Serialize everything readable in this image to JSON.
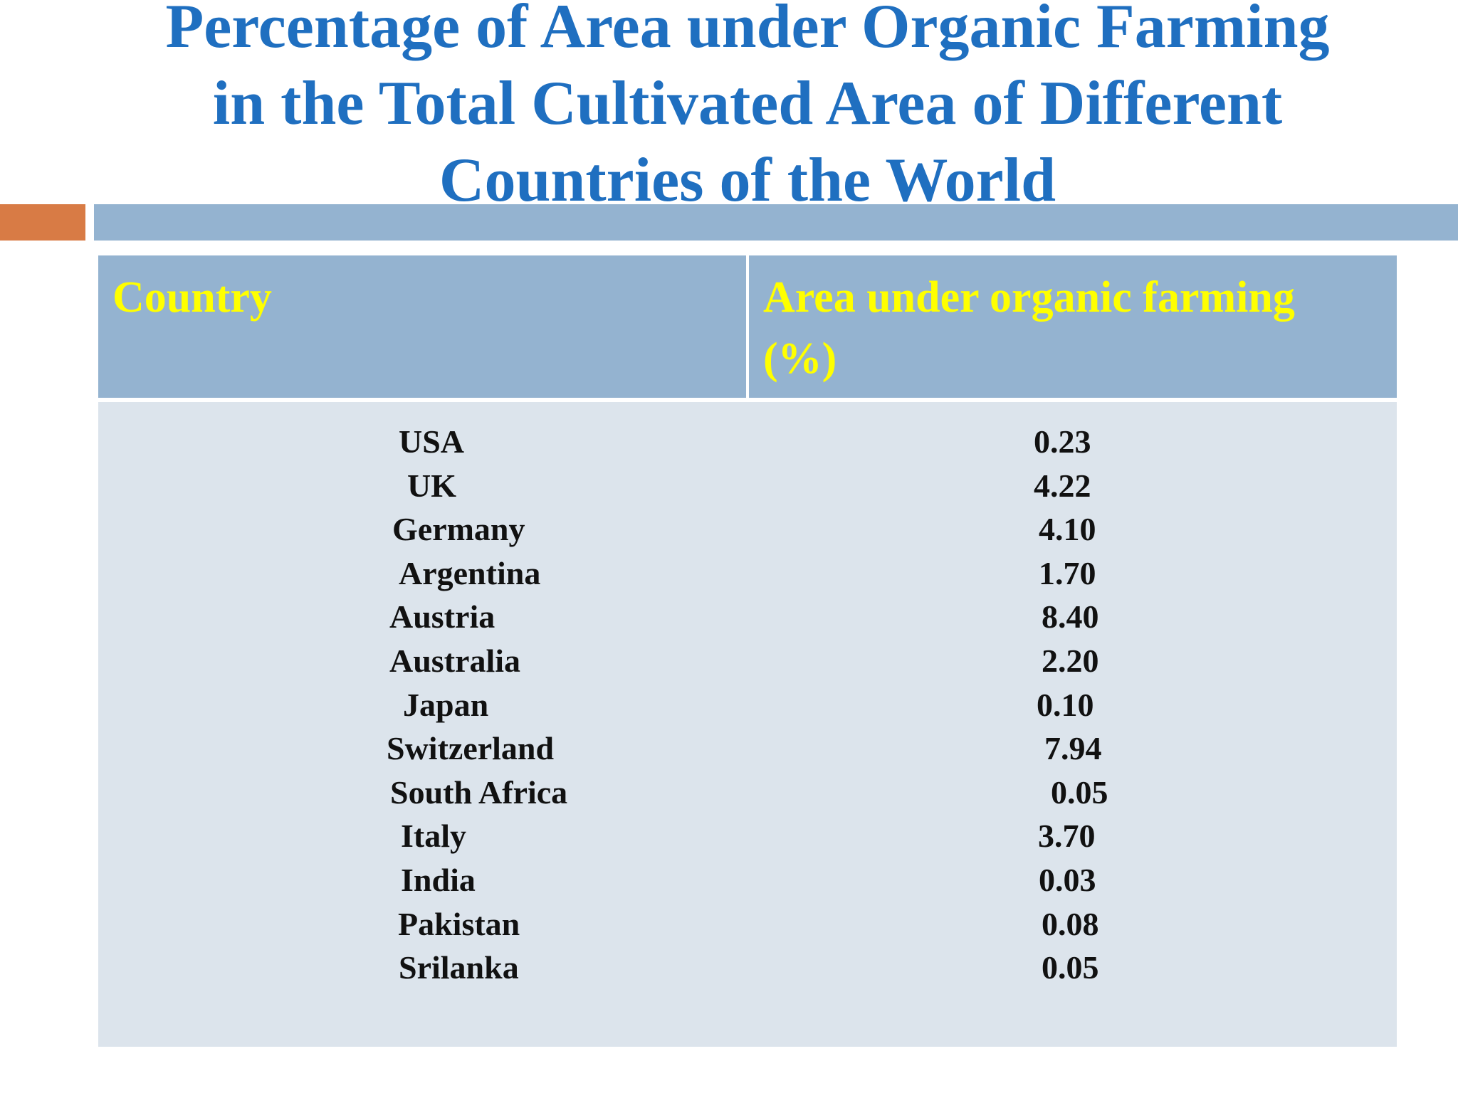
{
  "slide": {
    "title_lines": [
      "Percentage of Area under Organic Farming",
      "in the Total Cultivated Area of Different",
      "Countries of the World"
    ],
    "colors": {
      "title": "#1f6fc0",
      "accent_orange": "#d87b45",
      "accent_blue": "#94b3d0",
      "header_bg": "#94b3d0",
      "header_text": "#ffff00",
      "body_bg": "#dce4ec"
    }
  },
  "table": {
    "headers": {
      "country": "Country",
      "area_line1": "Area under organic farming",
      "area_line2": "(%)"
    },
    "rows": [
      {
        "country": "USA",
        "value": "0.23"
      },
      {
        "country": "UK",
        "value": "4.22"
      },
      {
        "country": "Germany",
        "value": "4.10"
      },
      {
        "country": "Argentina",
        "value": "1.70"
      },
      {
        "country": "Austria",
        "value": "8.40"
      },
      {
        "country": "Australia",
        "value": "2.20"
      },
      {
        "country": "Japan",
        "value": "0.10"
      },
      {
        "country": "Switzerland",
        "value": "7.94"
      },
      {
        "country": "South Africa",
        "value": "0.05"
      },
      {
        "country": "Italy",
        "value": "3.70"
      },
      {
        "country": "India",
        "value": "0.03"
      },
      {
        "country": "Pakistan",
        "value": "0.08"
      },
      {
        "country": "Srilanka",
        "value": "0.05"
      }
    ]
  }
}
